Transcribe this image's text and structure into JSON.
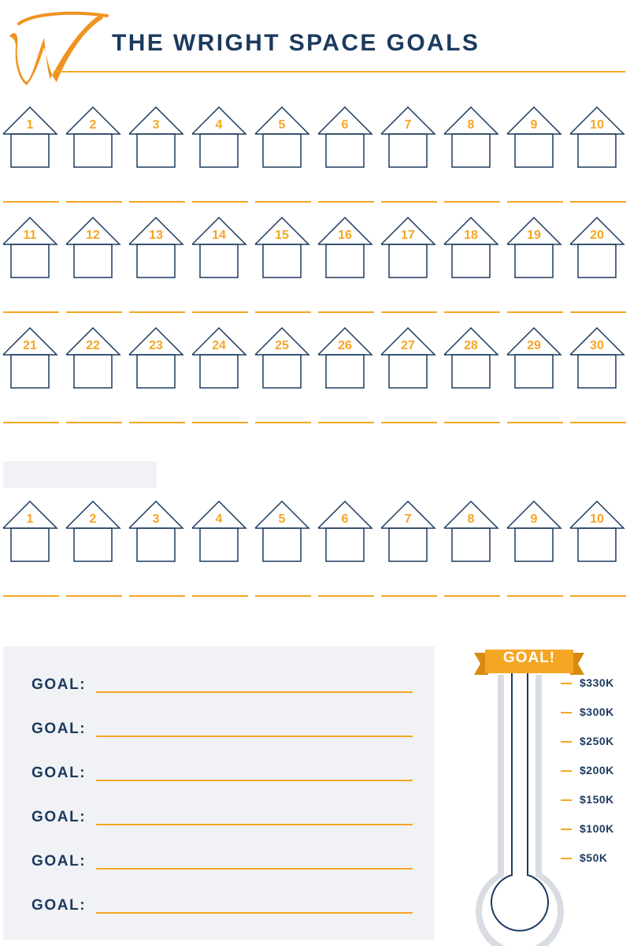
{
  "header": {
    "logo_letter": "W",
    "title": "THE WRIGHT SPACE GOALS"
  },
  "colors": {
    "navy": "#1c3a5e",
    "orange": "#f5a623",
    "panel": "#f1f2f5"
  },
  "house_rows": [
    [
      "1",
      "2",
      "3",
      "4",
      "5",
      "6",
      "7",
      "8",
      "9",
      "10"
    ],
    [
      "11",
      "12",
      "13",
      "14",
      "15",
      "16",
      "17",
      "18",
      "19",
      "20"
    ],
    [
      "21",
      "22",
      "23",
      "24",
      "25",
      "26",
      "27",
      "28",
      "29",
      "30"
    ],
    [
      "1",
      "2",
      "3",
      "4",
      "5",
      "6",
      "7",
      "8",
      "9",
      "10"
    ]
  ],
  "goals": {
    "label": "GOAL:",
    "count": 6
  },
  "thermometer": {
    "banner": "GOAL!",
    "scale": [
      "$330K",
      "$300K",
      "$250K",
      "$200K",
      "$150K",
      "$100K",
      "$50K"
    ]
  }
}
